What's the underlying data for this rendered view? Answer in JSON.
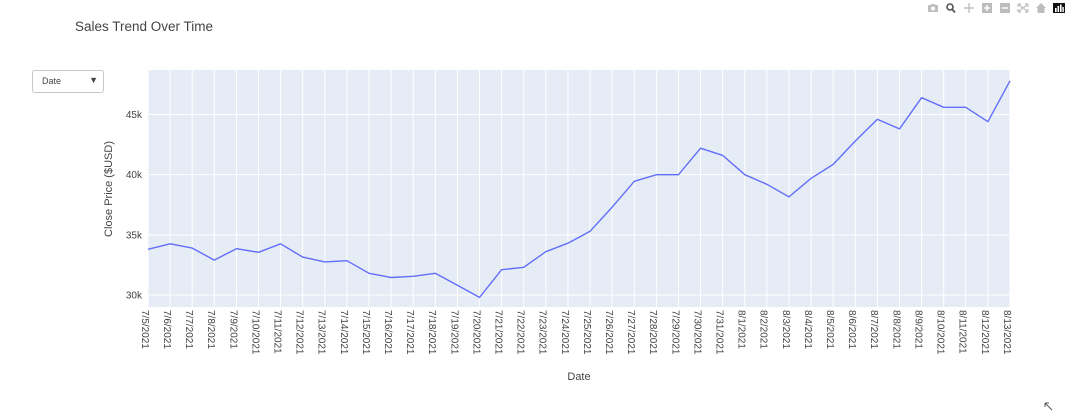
{
  "title": "Sales Trend Over Time",
  "dropdown": {
    "selected": "Date"
  },
  "modebar": {
    "icons": [
      "camera-icon",
      "zoom-icon",
      "pan-icon",
      "zoom-in-icon",
      "zoom-out-icon",
      "autoscale-icon",
      "home-icon",
      "plotly-logo-icon"
    ]
  },
  "colors": {
    "line": "#636efa",
    "plot_bg": "#e5ecf6",
    "grid": "#ffffff",
    "text": "#444444"
  },
  "chart_data": {
    "type": "line",
    "title": "Sales Trend Over Time",
    "xlabel": "Date",
    "ylabel": "Close Price ($USD)",
    "ylim": [
      29000,
      48700
    ],
    "yticks": [
      30000,
      35000,
      40000,
      45000
    ],
    "ytick_labels": [
      "30k",
      "35k",
      "40k",
      "45k"
    ],
    "grid": true,
    "x": [
      "7/5/2021",
      "7/6/2021",
      "7/7/2021",
      "7/8/2021",
      "7/9/2021",
      "7/10/2021",
      "7/11/2021",
      "7/12/2021",
      "7/13/2021",
      "7/14/2021",
      "7/15/2021",
      "7/16/2021",
      "7/17/2021",
      "7/18/2021",
      "7/19/2021",
      "7/20/2021",
      "7/21/2021",
      "7/22/2021",
      "7/23/2021",
      "7/24/2021",
      "7/25/2021",
      "7/26/2021",
      "7/27/2021",
      "7/28/2021",
      "7/29/2021",
      "7/30/2021",
      "7/31/2021",
      "8/1/2021",
      "8/2/2021",
      "8/3/2021",
      "8/4/2021",
      "8/5/2021",
      "8/6/2021",
      "8/7/2021",
      "8/8/2021",
      "8/9/2021",
      "8/10/2021",
      "8/11/2021",
      "8/12/2021",
      "8/13/2021"
    ],
    "series": [
      {
        "values": [
          33800,
          34250,
          33900,
          32900,
          33850,
          33550,
          34250,
          33150,
          32750,
          32850,
          31800,
          31450,
          31550,
          31800,
          30800,
          29800,
          32100,
          32300,
          33600,
          34300,
          35300,
          37300,
          39450,
          40000,
          40000,
          42200,
          41600,
          40000,
          39200,
          38150,
          39700,
          40850,
          42800,
          44600,
          43800,
          46400,
          45600,
          45600,
          44400,
          47800
        ]
      }
    ]
  }
}
